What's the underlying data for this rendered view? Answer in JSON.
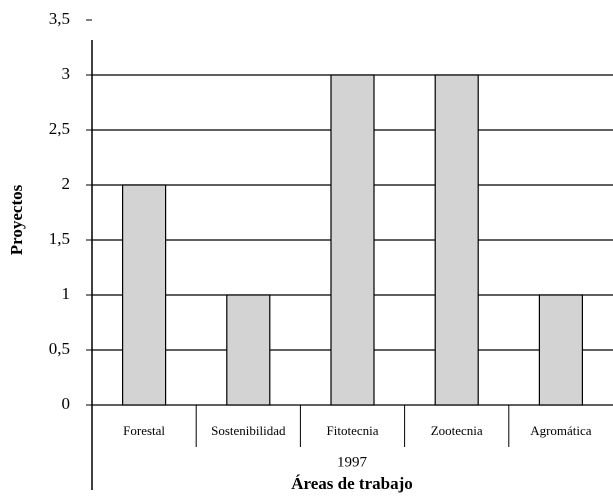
{
  "chart_data": {
    "type": "bar",
    "categories": [
      "Forestal",
      "Sostenibilidad",
      "Fitotecnia",
      "Zootecnia",
      "Agromática"
    ],
    "values": [
      2,
      1,
      3,
      3,
      1
    ],
    "color": "#d3d3d3",
    "ylim": [
      0,
      3.5
    ],
    "yticks": [
      0,
      {
        "value": 0.5,
        "label": "0,5"
      },
      1,
      {
        "value": 1.5,
        "label": "1,5"
      },
      2,
      {
        "value": 2.5,
        "label": "2,5"
      },
      3,
      {
        "value": 3.5,
        "label": "3,5"
      }
    ],
    "grid": true,
    "group_label": "1997",
    "xlabel": "Áreas de trabajo",
    "ylabel": "Proyectos"
  }
}
